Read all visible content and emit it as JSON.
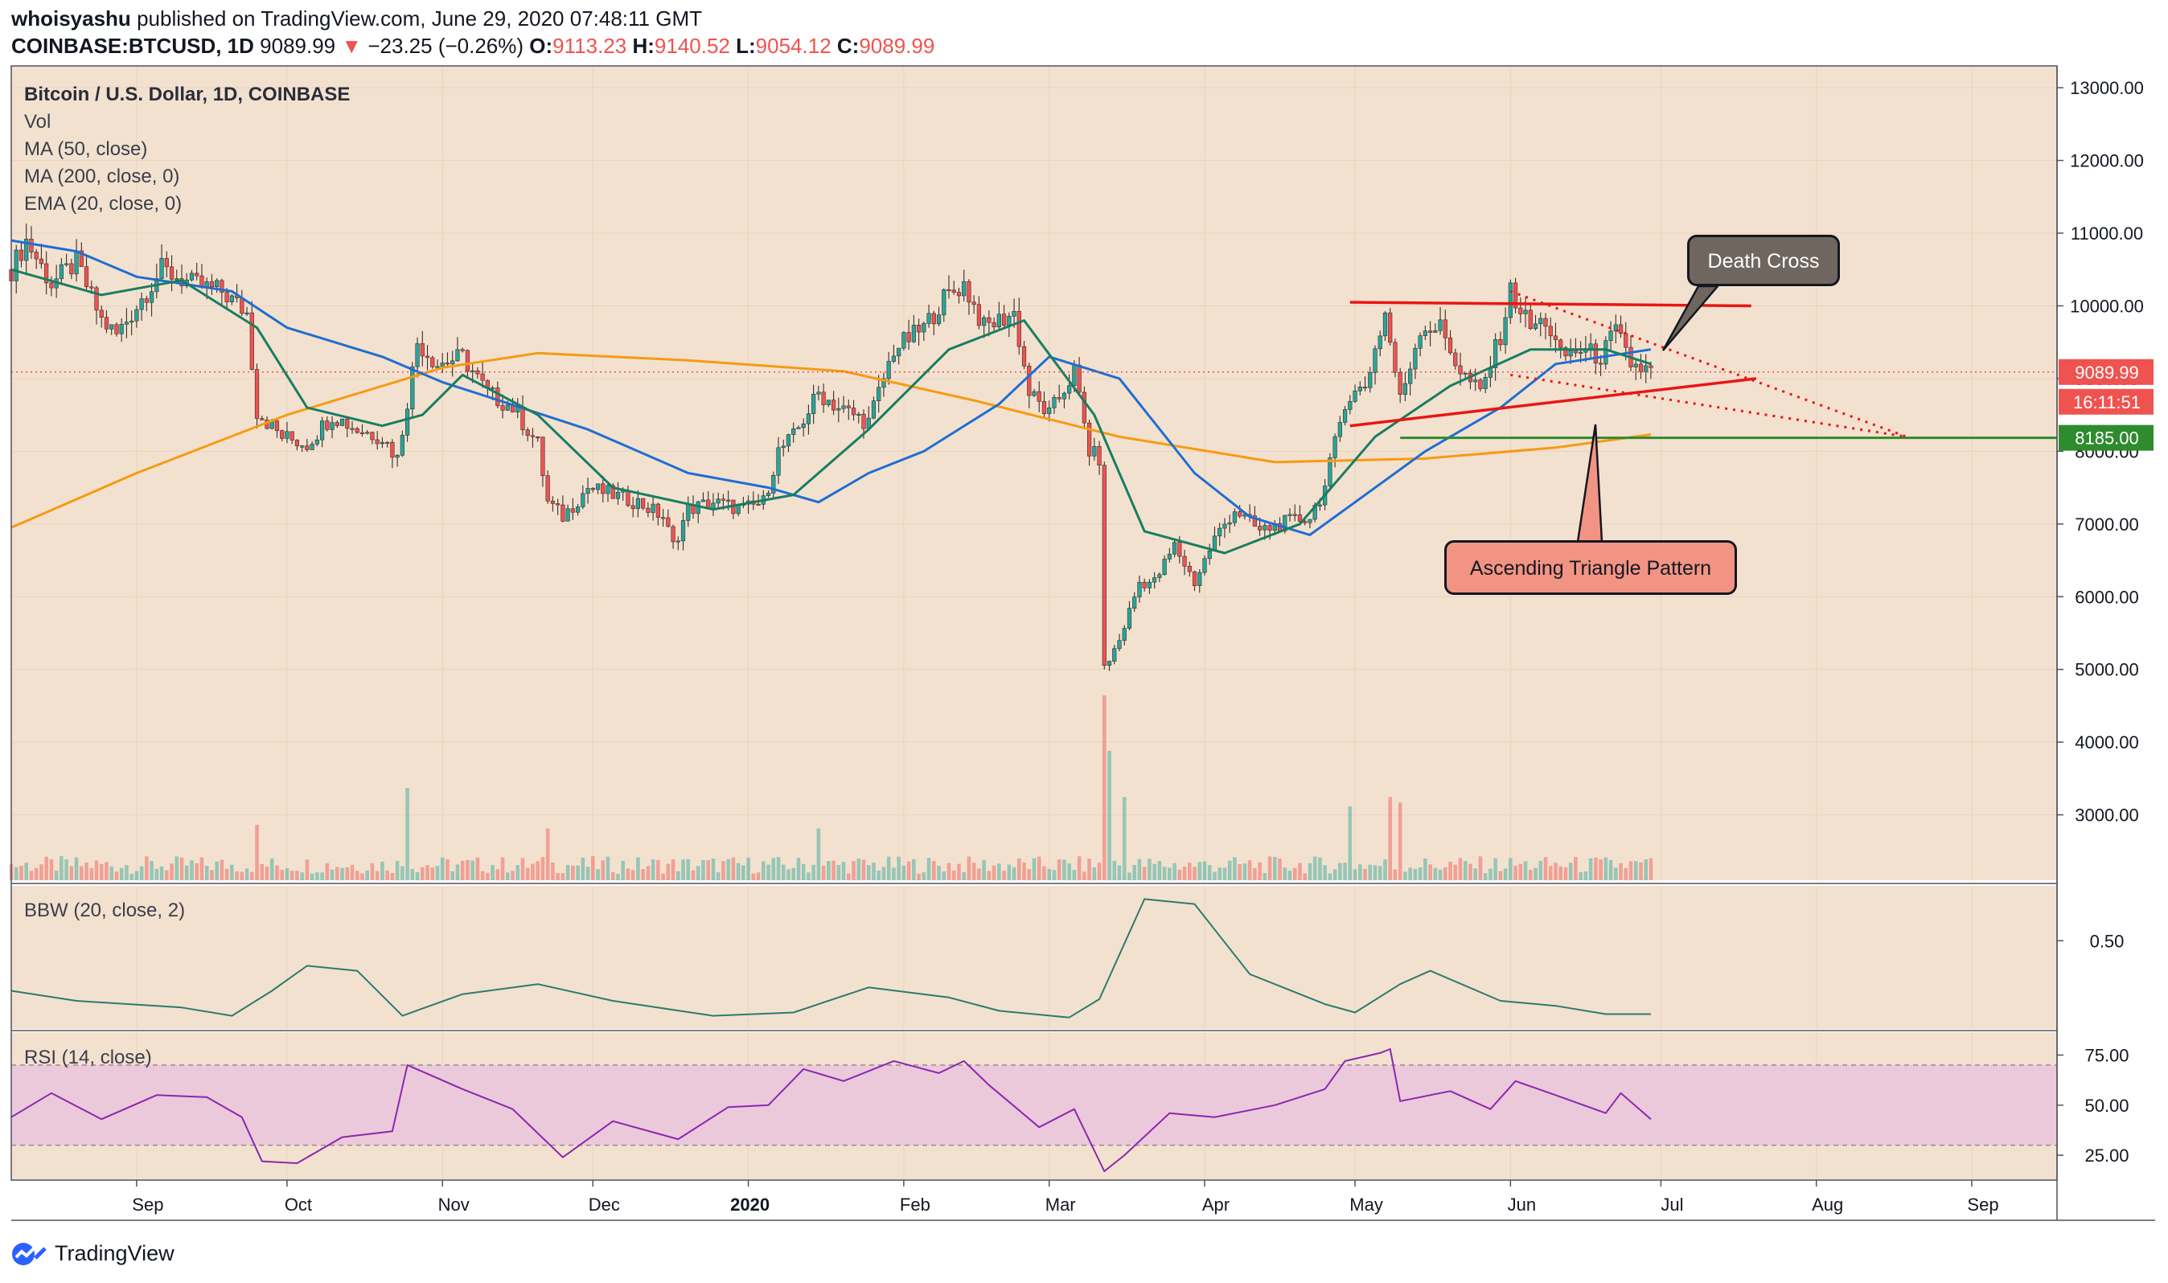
{
  "header": {
    "author": "whoisyashu",
    "published_text": "published on TradingView.com, June 29, 2020 07:48:11 GMT",
    "symbol": "COINBASE:BTCUSD, 1D",
    "last": "9089.99",
    "change": "−23.25 (−0.26%)",
    "o_label": "O:",
    "o": "9113.23",
    "h_label": "H:",
    "h": "9140.52",
    "l_label": "L:",
    "l": "9054.12",
    "c_label": "C:",
    "c": "9089.99",
    "down_icon": "triangle-down-icon"
  },
  "legend": {
    "title": "Bitcoin / U.S. Dollar, 1D, COINBASE",
    "vol": "Vol",
    "ma50": "MA (50, close)",
    "ma200": "MA (200, close, 0)",
    "ema20": "EMA (20, close, 0)",
    "bbw": "BBW (20, close, 2)",
    "rsi": "RSI (14, close)"
  },
  "annotations": {
    "death_cross": "Death Cross",
    "ascending_triangle": "Ascending Triangle Pattern"
  },
  "price_tags": {
    "last_price": "9089.99",
    "countdown": "16:11:51",
    "support": "8185.00"
  },
  "footer": {
    "brand": "TradingView"
  },
  "colors": {
    "background": "#f3e1cf",
    "candle_up": "#26a69a",
    "candle_down": "#ef5350",
    "ma50": "#1e6ed2",
    "ma200": "#f59b12",
    "ema20": "#177e62",
    "bbw": "#2b7b6d",
    "rsi": "#8a27b0",
    "rsi_band": "#ecc8db",
    "resistance": "#e81616",
    "support": "#2e8b2e"
  },
  "chart_data": {
    "type": "candlestick",
    "title": "Bitcoin / U.S. Dollar, 1D, COINBASE",
    "y_axis": {
      "ticks": [
        "13000.00",
        "12000.00",
        "11000.00",
        "10000.00",
        "9000.00",
        "8000.00",
        "7000.00",
        "6000.00",
        "5000.00",
        "4000.00",
        "3000.00"
      ],
      "range": [
        2100,
        13300
      ]
    },
    "x_axis": {
      "ticks": [
        "Sep",
        "Oct",
        "Nov",
        "Dec",
        "2020",
        "Feb",
        "Mar",
        "Apr",
        "May",
        "Jun",
        "Jul",
        "Aug",
        "Sep"
      ],
      "range": [
        "2019-08-07",
        "2020-09-18"
      ]
    },
    "price_path": [
      [
        "2019-08-07",
        10500
      ],
      [
        "2019-08-10",
        10900
      ],
      [
        "2019-08-15",
        10300
      ],
      [
        "2019-08-20",
        10600
      ],
      [
        "2019-08-25",
        9800
      ],
      [
        "2019-08-28",
        9600
      ],
      [
        "2019-09-01",
        10000
      ],
      [
        "2019-09-06",
        10500
      ],
      [
        "2019-09-12",
        10300
      ],
      [
        "2019-09-18",
        10200
      ],
      [
        "2019-09-23",
        9900
      ],
      [
        "2019-09-25",
        8550
      ],
      [
        "2019-09-30",
        8200
      ],
      [
        "2019-10-05",
        8100
      ],
      [
        "2019-10-10",
        8500
      ],
      [
        "2019-10-15",
        8300
      ],
      [
        "2019-10-20",
        8200
      ],
      [
        "2019-10-23",
        7900
      ],
      [
        "2019-10-25",
        8700
      ],
      [
        "2019-10-27",
        9500
      ],
      [
        "2019-10-31",
        9200
      ],
      [
        "2019-11-05",
        9300
      ],
      [
        "2019-11-10",
        8800
      ],
      [
        "2019-11-15",
        8600
      ],
      [
        "2019-11-20",
        8100
      ],
      [
        "2019-11-22",
        7300
      ],
      [
        "2019-11-25",
        7100
      ],
      [
        "2019-11-30",
        7500
      ],
      [
        "2019-12-05",
        7400
      ],
      [
        "2019-12-10",
        7300
      ],
      [
        "2019-12-15",
        7100
      ],
      [
        "2019-12-17",
        6700
      ],
      [
        "2019-12-20",
        7200
      ],
      [
        "2019-12-25",
        7300
      ],
      [
        "2019-12-31",
        7200
      ],
      [
        "2020-01-04",
        7300
      ],
      [
        "2020-01-07",
        8000
      ],
      [
        "2020-01-10",
        8200
      ],
      [
        "2020-01-15",
        8800
      ],
      [
        "2020-01-19",
        8600
      ],
      [
        "2020-01-25",
        8400
      ],
      [
        "2020-01-30",
        9400
      ],
      [
        "2020-02-05",
        9700
      ],
      [
        "2020-02-09",
        10100
      ],
      [
        "2020-02-13",
        10300
      ],
      [
        "2020-02-17",
        9700
      ],
      [
        "2020-02-23",
        9900
      ],
      [
        "2020-02-26",
        8800
      ],
      [
        "2020-03-01",
        8500
      ],
      [
        "2020-03-06",
        9100
      ],
      [
        "2020-03-09",
        8000
      ],
      [
        "2020-03-11",
        7900
      ],
      [
        "2020-03-12",
        5000
      ],
      [
        "2020-03-15",
        5400
      ],
      [
        "2020-03-19",
        6200
      ],
      [
        "2020-03-22",
        6200
      ],
      [
        "2020-03-26",
        6700
      ],
      [
        "2020-03-30",
        6200
      ],
      [
        "2020-04-03",
        6800
      ],
      [
        "2020-04-07",
        7200
      ],
      [
        "2020-04-12",
        6900
      ],
      [
        "2020-04-16",
        7000
      ],
      [
        "2020-04-22",
        7100
      ],
      [
        "2020-04-25",
        7500
      ],
      [
        "2020-04-29",
        8700
      ],
      [
        "2020-05-03",
        8900
      ],
      [
        "2020-05-07",
        9900
      ],
      [
        "2020-05-10",
        8700
      ],
      [
        "2020-05-14",
        9700
      ],
      [
        "2020-05-18",
        9700
      ],
      [
        "2020-05-22",
        9100
      ],
      [
        "2020-05-26",
        8800
      ],
      [
        "2020-05-30",
        9600
      ],
      [
        "2020-06-01",
        10200
      ],
      [
        "2020-06-05",
        9700
      ],
      [
        "2020-06-08",
        9800
      ],
      [
        "2020-06-11",
        9300
      ],
      [
        "2020-06-15",
        9400
      ],
      [
        "2020-06-19",
        9300
      ],
      [
        "2020-06-22",
        9650
      ],
      [
        "2020-06-25",
        9200
      ],
      [
        "2020-06-29",
        9090
      ]
    ],
    "ma50": [
      [
        "2019-08-07",
        10900
      ],
      [
        "2019-08-20",
        10750
      ],
      [
        "2019-09-01",
        10400
      ],
      [
        "2019-09-20",
        10200
      ],
      [
        "2019-10-01",
        9700
      ],
      [
        "2019-10-20",
        9300
      ],
      [
        "2019-11-01",
        8950
      ],
      [
        "2019-11-10",
        8750
      ],
      [
        "2019-11-30",
        8300
      ],
      [
        "2019-12-20",
        7700
      ],
      [
        "2020-01-05",
        7500
      ],
      [
        "2020-01-15",
        7300
      ],
      [
        "2020-01-25",
        7700
      ],
      [
        "2020-02-05",
        8000
      ],
      [
        "2020-02-20",
        8650
      ],
      [
        "2020-03-01",
        9300
      ],
      [
        "2020-03-15",
        9000
      ],
      [
        "2020-03-30",
        7700
      ],
      [
        "2020-04-10",
        7100
      ],
      [
        "2020-04-22",
        6850
      ],
      [
        "2020-05-01",
        7300
      ],
      [
        "2020-05-15",
        8000
      ],
      [
        "2020-05-30",
        8600
      ],
      [
        "2020-06-10",
        9200
      ],
      [
        "2020-06-29",
        9400
      ]
    ],
    "ma200": [
      [
        "2019-08-07",
        6950
      ],
      [
        "2019-09-01",
        7700
      ],
      [
        "2019-10-01",
        8500
      ],
      [
        "2019-11-01",
        9150
      ],
      [
        "2019-11-20",
        9350
      ],
      [
        "2019-12-20",
        9250
      ],
      [
        "2020-01-20",
        9100
      ],
      [
        "2020-02-15",
        8700
      ],
      [
        "2020-03-15",
        8200
      ],
      [
        "2020-04-15",
        7850
      ],
      [
        "2020-05-15",
        7900
      ],
      [
        "2020-06-10",
        8050
      ],
      [
        "2020-06-29",
        8230
      ]
    ],
    "ema20": [
      [
        "2019-08-07",
        10500
      ],
      [
        "2019-08-25",
        10150
      ],
      [
        "2019-09-10",
        10350
      ],
      [
        "2019-09-25",
        9700
      ],
      [
        "2019-10-05",
        8600
      ],
      [
        "2019-10-20",
        8350
      ],
      [
        "2019-10-28",
        8500
      ],
      [
        "2019-11-05",
        9050
      ],
      [
        "2019-11-20",
        8500
      ],
      [
        "2019-12-05",
        7500
      ],
      [
        "2019-12-25",
        7200
      ],
      [
        "2020-01-10",
        7400
      ],
      [
        "2020-01-25",
        8300
      ],
      [
        "2020-02-10",
        9400
      ],
      [
        "2020-02-25",
        9800
      ],
      [
        "2020-03-10",
        8500
      ],
      [
        "2020-03-20",
        6900
      ],
      [
        "2020-04-05",
        6600
      ],
      [
        "2020-04-20",
        7000
      ],
      [
        "2020-05-05",
        8200
      ],
      [
        "2020-05-20",
        8900
      ],
      [
        "2020-06-05",
        9400
      ],
      [
        "2020-06-20",
        9400
      ],
      [
        "2020-06-29",
        9200
      ]
    ],
    "volume_spikes": [
      [
        "2019-09-25",
        0.3
      ],
      [
        "2019-10-25",
        0.5
      ],
      [
        "2019-11-22",
        0.28
      ],
      [
        "2020-01-15",
        0.28
      ],
      [
        "2020-03-12",
        1.0
      ],
      [
        "2020-03-13",
        0.7
      ],
      [
        "2020-03-16",
        0.45
      ],
      [
        "2020-04-30",
        0.4
      ],
      [
        "2020-05-08",
        0.45
      ],
      [
        "2020-05-10",
        0.42
      ]
    ],
    "bbw": [
      [
        "2019-08-07",
        0.2
      ],
      [
        "2019-08-20",
        0.14
      ],
      [
        "2019-09-10",
        0.1
      ],
      [
        "2019-09-20",
        0.05
      ],
      [
        "2019-09-28",
        0.2
      ],
      [
        "2019-10-05",
        0.35
      ],
      [
        "2019-10-15",
        0.32
      ],
      [
        "2019-10-24",
        0.05
      ],
      [
        "2019-11-05",
        0.18
      ],
      [
        "2019-11-20",
        0.24
      ],
      [
        "2019-12-05",
        0.14
      ],
      [
        "2019-12-25",
        0.05
      ],
      [
        "2020-01-10",
        0.07
      ],
      [
        "2020-01-25",
        0.22
      ],
      [
        "2020-02-10",
        0.16
      ],
      [
        "2020-02-20",
        0.08
      ],
      [
        "2020-03-05",
        0.04
      ],
      [
        "2020-03-11",
        0.15
      ],
      [
        "2020-03-20",
        0.75
      ],
      [
        "2020-03-30",
        0.72
      ],
      [
        "2020-04-10",
        0.3
      ],
      [
        "2020-04-25",
        0.12
      ],
      [
        "2020-05-01",
        0.07
      ],
      [
        "2020-05-10",
        0.24
      ],
      [
        "2020-05-16",
        0.32
      ],
      [
        "2020-05-30",
        0.14
      ],
      [
        "2020-06-10",
        0.11
      ],
      [
        "2020-06-20",
        0.06
      ],
      [
        "2020-06-29",
        0.06
      ]
    ],
    "bbw_axis": {
      "ticks": [
        "0.50"
      ],
      "range": [
        0,
        0.8
      ]
    },
    "rsi": [
      [
        "2019-08-07",
        44
      ],
      [
        "2019-08-15",
        56
      ],
      [
        "2019-08-25",
        43
      ],
      [
        "2019-09-05",
        55
      ],
      [
        "2019-09-15",
        54
      ],
      [
        "2019-09-22",
        44
      ],
      [
        "2019-09-26",
        22
      ],
      [
        "2019-10-03",
        21
      ],
      [
        "2019-10-12",
        34
      ],
      [
        "2019-10-22",
        37
      ],
      [
        "2019-10-25",
        70
      ],
      [
        "2019-11-05",
        58
      ],
      [
        "2019-11-15",
        48
      ],
      [
        "2019-11-25",
        24
      ],
      [
        "2019-12-05",
        42
      ],
      [
        "2019-12-18",
        33
      ],
      [
        "2019-12-28",
        49
      ],
      [
        "2020-01-05",
        50
      ],
      [
        "2020-01-12",
        68
      ],
      [
        "2020-01-20",
        62
      ],
      [
        "2020-01-30",
        72
      ],
      [
        "2020-02-08",
        66
      ],
      [
        "2020-02-13",
        72
      ],
      [
        "2020-02-18",
        60
      ],
      [
        "2020-02-28",
        39
      ],
      [
        "2020-03-06",
        48
      ],
      [
        "2020-03-12",
        17
      ],
      [
        "2020-03-16",
        25
      ],
      [
        "2020-03-25",
        46
      ],
      [
        "2020-04-03",
        44
      ],
      [
        "2020-04-15",
        50
      ],
      [
        "2020-04-25",
        58
      ],
      [
        "2020-04-29",
        72
      ],
      [
        "2020-05-06",
        76
      ],
      [
        "2020-05-08",
        78
      ],
      [
        "2020-05-10",
        52
      ],
      [
        "2020-05-20",
        57
      ],
      [
        "2020-05-28",
        48
      ],
      [
        "2020-06-02",
        62
      ],
      [
        "2020-06-10",
        55
      ],
      [
        "2020-06-20",
        46
      ],
      [
        "2020-06-23",
        56
      ],
      [
        "2020-06-29",
        43
      ]
    ],
    "rsi_axis": {
      "ticks": [
        "75.00",
        "50.00",
        "25.00"
      ],
      "band": [
        30,
        70
      ],
      "range": [
        15,
        84
      ]
    },
    "drawings": {
      "resistance_line": [
        [
          "2020-04-30",
          10050
        ],
        [
          "2020-07-19",
          10000
        ]
      ],
      "ascending_support": [
        [
          "2020-04-30",
          8350
        ],
        [
          "2020-07-20",
          9000
        ]
      ],
      "dotted_upper": [
        [
          "2020-06-01",
          10200
        ],
        [
          "2020-08-19",
          8200
        ]
      ],
      "dotted_lower": [
        [
          "2020-06-01",
          9050
        ],
        [
          "2020-08-19",
          8200
        ]
      ],
      "green_support": [
        [
          "2020-05-10",
          8185
        ],
        [
          "2020-09-18",
          8185
        ]
      ]
    },
    "last_price_line": 9089.99,
    "grid": true
  }
}
